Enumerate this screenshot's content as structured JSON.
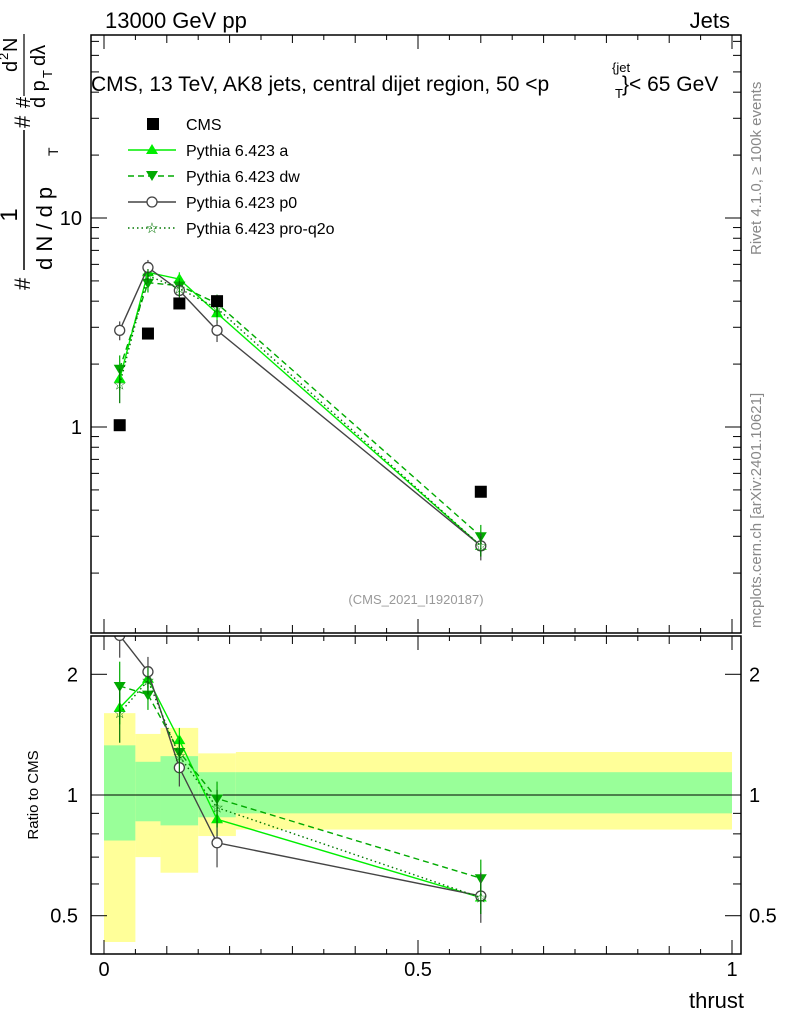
{
  "header": {
    "left": "13000 GeV pp",
    "right": "Jets"
  },
  "plot_title": {
    "prefix": "CMS, 13 TeV, AK8 jets, central dijet region, 50 <p",
    "sub": "T",
    "sup": "{jet",
    "suffix": "}< 65 GeV"
  },
  "ylabel": {
    "frac_num": "1",
    "frac_den": "d N / d p",
    "frac_den_sub": "T",
    "hash1": "#",
    "hash2": "#",
    "hash3": "#",
    "d2n": "d",
    "d2n_sup": "2",
    "d2n_n": "N",
    "dpt": "d p",
    "dpt_sub": "T",
    "dlam": "dλ"
  },
  "side_labels": {
    "rivet": "Rivet 4.1.0, ≥ 100k events",
    "mcplots": "mcplots.cern.ch [arXiv:2401.10621]"
  },
  "analysis_id": "(CMS_2021_I1920187)",
  "colors": {
    "data": "#000000",
    "a": "#00ee00",
    "dw": "#00aa00",
    "p0": "#444444",
    "proq2o": "#007700",
    "band_outer": "#ffff99",
    "band_inner": "#99ff99"
  },
  "chart_data": [
    {
      "type": "scatter",
      "panel": "main",
      "yscale": "log",
      "xlim": [
        0,
        1
      ],
      "ylim": [
        0.12,
        100
      ],
      "yticks": [
        1,
        10
      ],
      "ytick_labels": [
        "1",
        "10"
      ],
      "x": [
        0.025,
        0.07,
        0.12,
        0.18,
        0.6
      ],
      "series": [
        {
          "name": "CMS",
          "key": "cms",
          "values": [
            1.02,
            2.8,
            3.9,
            4.0,
            0.49
          ]
        },
        {
          "name": "Pythia 6.423 a",
          "key": "a",
          "values": [
            1.7,
            5.5,
            5.1,
            3.5,
            0.27
          ],
          "err": [
            0.2,
            0.4,
            0.4,
            0.35,
            0.03
          ]
        },
        {
          "name": "Pythia 6.423 dw",
          "key": "dw",
          "values": [
            1.9,
            4.9,
            4.75,
            3.9,
            0.3
          ],
          "err": [
            0.3,
            0.5,
            0.4,
            0.4,
            0.04
          ]
        },
        {
          "name": "Pythia 6.423 p0",
          "key": "p0",
          "values": [
            2.9,
            5.8,
            4.5,
            2.9,
            0.27
          ],
          "err": [
            0.3,
            0.5,
            0.4,
            0.35,
            0.04
          ]
        },
        {
          "name": "Pythia 6.423 pro-q2o",
          "key": "proq2o",
          "values": [
            1.6,
            5.3,
            4.6,
            3.7,
            0.27
          ],
          "err": [
            0.3,
            0.4,
            0.4,
            0.35,
            0.03
          ]
        }
      ]
    },
    {
      "type": "line",
      "panel": "ratio",
      "ylabel": "Ratio to CMS",
      "xlabel": "thrust",
      "xlim": [
        0,
        1
      ],
      "ylim": [
        0.42,
        2.35
      ],
      "yticks": [
        0.5,
        1,
        2
      ],
      "ytick_labels": [
        "0.5",
        "1",
        "2"
      ],
      "xticks": [
        0,
        0.5,
        1
      ],
      "xtick_labels": [
        "0",
        "0.5",
        "1"
      ],
      "x": [
        0.025,
        0.07,
        0.12,
        0.18,
        0.6
      ],
      "bands": [
        {
          "x0": 0.0,
          "x1": 0.05,
          "inner": [
            0.77,
            1.33
          ],
          "outer": [
            0.43,
            1.6
          ]
        },
        {
          "x0": 0.05,
          "x1": 0.09,
          "inner": [
            0.86,
            1.21
          ],
          "outer": [
            0.7,
            1.42
          ]
        },
        {
          "x0": 0.09,
          "x1": 0.15,
          "inner": [
            0.84,
            1.25
          ],
          "outer": [
            0.64,
            1.47
          ]
        },
        {
          "x0": 0.15,
          "x1": 0.21,
          "inner": [
            0.88,
            1.14
          ],
          "outer": [
            0.79,
            1.27
          ]
        },
        {
          "x0": 0.21,
          "x1": 1.0,
          "inner": [
            0.9,
            1.14
          ],
          "outer": [
            0.82,
            1.28
          ]
        }
      ],
      "series": [
        {
          "name": "Pythia 6.423 a",
          "key": "a",
          "values": [
            1.65,
            1.95,
            1.37,
            0.87,
            0.555
          ],
          "err": [
            0.15,
            0.12,
            0.1,
            0.08,
            0.05
          ]
        },
        {
          "name": "Pythia 6.423 dw",
          "key": "dw",
          "values": [
            1.87,
            1.78,
            1.28,
            0.98,
            0.62
          ],
          "err": [
            0.28,
            0.15,
            0.12,
            0.1,
            0.07
          ]
        },
        {
          "name": "Pythia 6.423 p0",
          "key": "p0",
          "values": [
            2.5,
            2.03,
            1.17,
            0.76,
            0.56
          ],
          "err": [
            0.3,
            0.18,
            0.12,
            0.1,
            0.08
          ]
        },
        {
          "name": "Pythia 6.423 pro-q2o",
          "key": "proq2o",
          "values": [
            1.6,
            1.93,
            1.25,
            0.93,
            0.555
          ],
          "err": [
            0.25,
            0.15,
            0.12,
            0.1,
            0.05
          ]
        }
      ]
    }
  ]
}
